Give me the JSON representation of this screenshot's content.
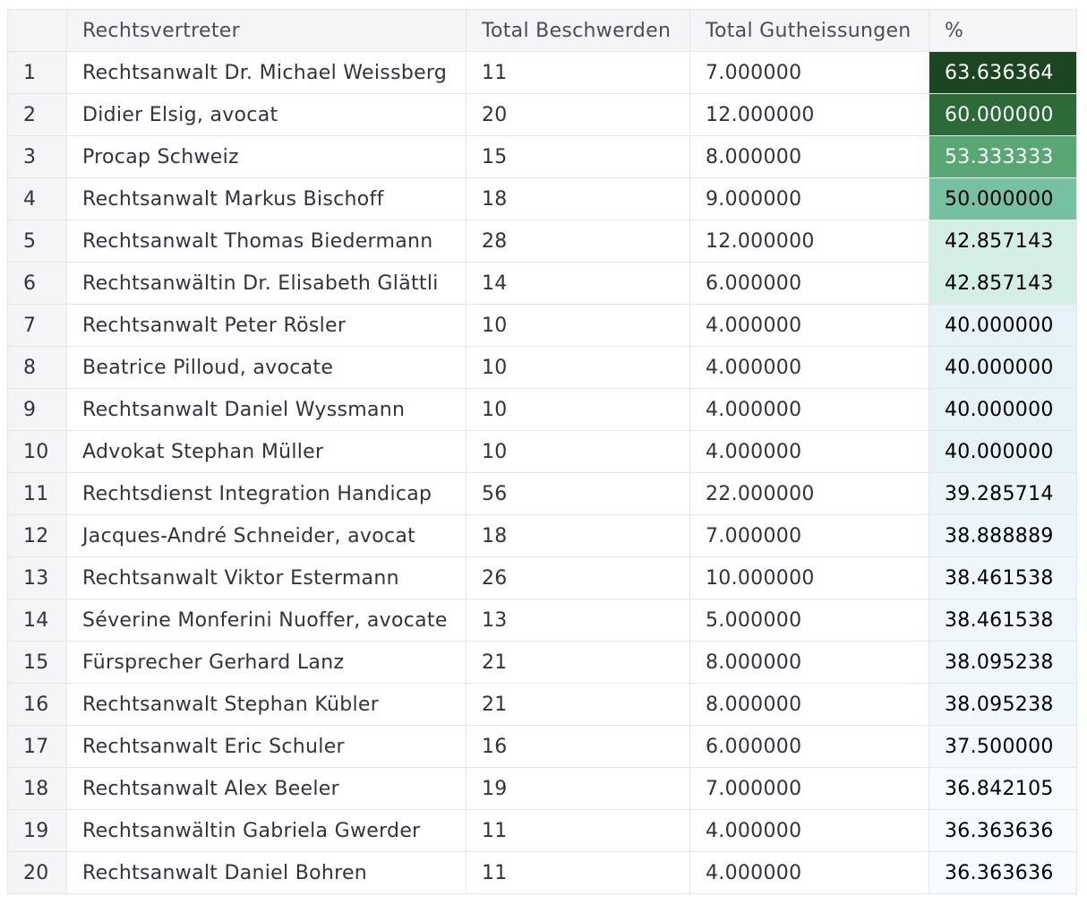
{
  "columns": [
    "",
    "Rechtsvertreter",
    "Total Beschwerden",
    "Total Gutheissungen",
    "%"
  ],
  "rows": [
    {
      "i": "1",
      "name": "Rechtsanwalt Dr. Michael Weissberg",
      "total": "11",
      "gut": "7.000000",
      "pct": "63.636364",
      "bg": "#1b4621",
      "fg": "#ffffff"
    },
    {
      "i": "2",
      "name": "Didier Elsig, avocat",
      "total": "20",
      "gut": "12.000000",
      "pct": "60.000000",
      "bg": "#2c6a38",
      "fg": "#ffffff"
    },
    {
      "i": "3",
      "name": "Procap Schweiz",
      "total": "15",
      "gut": "8.000000",
      "pct": "53.333333",
      "bg": "#5aa776",
      "fg": "#ffffff"
    },
    {
      "i": "4",
      "name": "Rechtsanwalt Markus Bischoff",
      "total": "18",
      "gut": "9.000000",
      "pct": "50.000000",
      "bg": "#76c1a2",
      "fg": "#000000"
    },
    {
      "i": "5",
      "name": "Rechtsanwalt Thomas Biedermann",
      "total": "28",
      "gut": "12.000000",
      "pct": "42.857143",
      "bg": "#d4ede5",
      "fg": "#000000"
    },
    {
      "i": "6",
      "name": "Rechtsanwältin Dr. Elisabeth Glättli",
      "total": "14",
      "gut": "6.000000",
      "pct": "42.857143",
      "bg": "#d4ede5",
      "fg": "#000000"
    },
    {
      "i": "7",
      "name": "Rechtsanwalt Peter Rösler",
      "total": "10",
      "gut": "4.000000",
      "pct": "40.000000",
      "bg": "#e6f2f7",
      "fg": "#000000"
    },
    {
      "i": "8",
      "name": "Beatrice Pilloud, avocate",
      "total": "10",
      "gut": "4.000000",
      "pct": "40.000000",
      "bg": "#e6f2f7",
      "fg": "#000000"
    },
    {
      "i": "9",
      "name": "Rechtsanwalt Daniel Wyssmann",
      "total": "10",
      "gut": "4.000000",
      "pct": "40.000000",
      "bg": "#e6f2f7",
      "fg": "#000000"
    },
    {
      "i": "10",
      "name": "Advokat Stephan Müller",
      "total": "10",
      "gut": "4.000000",
      "pct": "40.000000",
      "bg": "#e6f2f7",
      "fg": "#000000"
    },
    {
      "i": "11",
      "name": "Rechtsdienst Integration Handicap",
      "total": "56",
      "gut": "22.000000",
      "pct": "39.285714",
      "bg": "#ebf5f9",
      "fg": "#000000"
    },
    {
      "i": "12",
      "name": "Jacques-André Schneider, avocat",
      "total": "18",
      "gut": "7.000000",
      "pct": "38.888889",
      "bg": "#edf6fa",
      "fg": "#000000"
    },
    {
      "i": "13",
      "name": "Rechtsanwalt Viktor Estermann",
      "total": "26",
      "gut": "10.000000",
      "pct": "38.461538",
      "bg": "#eff7fa",
      "fg": "#000000"
    },
    {
      "i": "14",
      "name": "Séverine Monferini Nuoffer, avocate",
      "total": "13",
      "gut": "5.000000",
      "pct": "38.461538",
      "bg": "#eff7fa",
      "fg": "#000000"
    },
    {
      "i": "15",
      "name": "Fürsprecher Gerhard Lanz",
      "total": "21",
      "gut": "8.000000",
      "pct": "38.095238",
      "bg": "#f1f8fb",
      "fg": "#000000"
    },
    {
      "i": "16",
      "name": "Rechtsanwalt Stephan Kübler",
      "total": "21",
      "gut": "8.000000",
      "pct": "38.095238",
      "bg": "#f1f8fb",
      "fg": "#000000"
    },
    {
      "i": "17",
      "name": "Rechtsanwalt Eric Schuler",
      "total": "16",
      "gut": "6.000000",
      "pct": "37.500000",
      "bg": "#f4f9fc",
      "fg": "#000000"
    },
    {
      "i": "18",
      "name": "Rechtsanwalt Alex Beeler",
      "total": "19",
      "gut": "7.000000",
      "pct": "36.842105",
      "bg": "#f7fbfd",
      "fg": "#000000"
    },
    {
      "i": "19",
      "name": "Rechtsanwältin Gabriela Gwerder",
      "total": "11",
      "gut": "4.000000",
      "pct": "36.363636",
      "bg": "#f8fbfd",
      "fg": "#000000"
    },
    {
      "i": "20",
      "name": "Rechtsanwalt Daniel Bohren",
      "total": "11",
      "gut": "4.000000",
      "pct": "36.363636",
      "bg": "#f8fbfd",
      "fg": "#000000"
    }
  ]
}
